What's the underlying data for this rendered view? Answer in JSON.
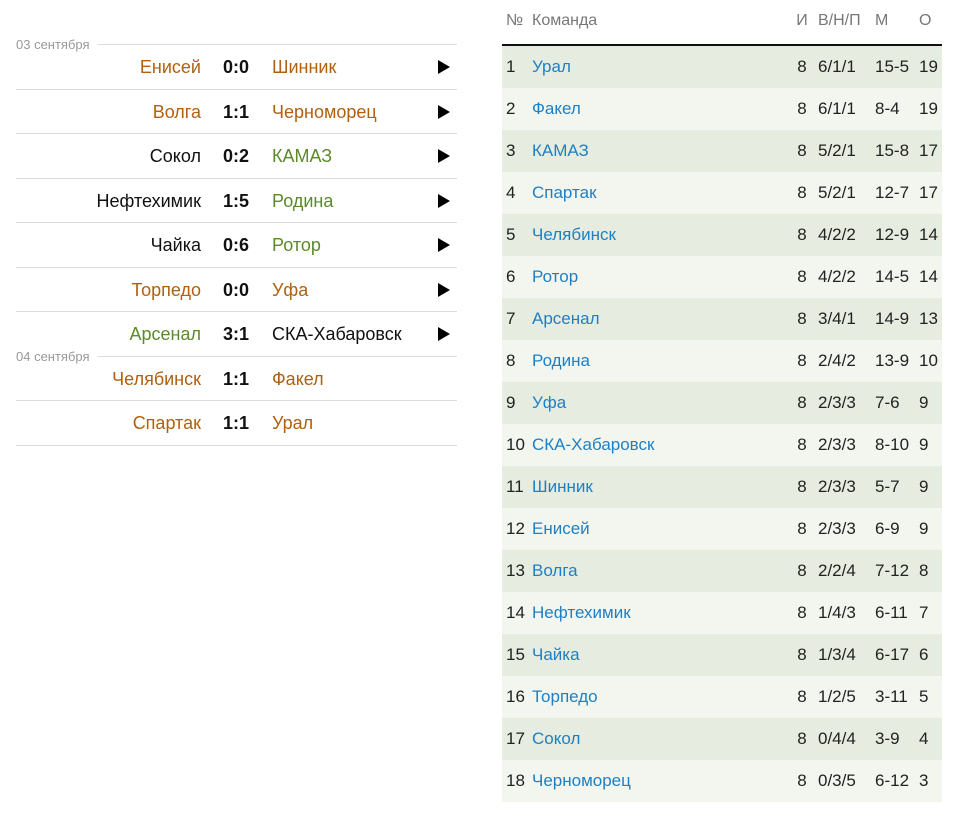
{
  "matches": {
    "groups": [
      {
        "date": "03 сентября",
        "matches": [
          {
            "home": "Енисей",
            "score": "0:0",
            "away": "Шинник",
            "home_color": "#b0600f",
            "away_color": "#b0600f",
            "arrow": true
          },
          {
            "home": "Волга",
            "score": "1:1",
            "away": "Черноморец",
            "home_color": "#b0600f",
            "away_color": "#b0600f",
            "arrow": true
          },
          {
            "home": "Сокол",
            "score": "0:2",
            "away": "КАМАЗ",
            "home_color": "#111111",
            "away_color": "#5a8a2a",
            "arrow": true
          },
          {
            "home": "Нефтехимик",
            "score": "1:5",
            "away": "Родина",
            "home_color": "#111111",
            "away_color": "#5a8a2a",
            "arrow": true
          },
          {
            "home": "Чайка",
            "score": "0:6",
            "away": "Ротор",
            "home_color": "#111111",
            "away_color": "#5a8a2a",
            "arrow": true
          },
          {
            "home": "Торпедо",
            "score": "0:0",
            "away": "Уфа",
            "home_color": "#b0600f",
            "away_color": "#b0600f",
            "arrow": true
          },
          {
            "home": "Арсенал",
            "score": "3:1",
            "away": "СКА-Хабаровск",
            "home_color": "#5a8a2a",
            "away_color": "#111111",
            "arrow": true
          }
        ]
      },
      {
        "date": "04 сентября",
        "matches": [
          {
            "home": "Челябинск",
            "score": "1:1",
            "away": "Факел",
            "home_color": "#b0600f",
            "away_color": "#b0600f",
            "arrow": false
          },
          {
            "home": "Спартак",
            "score": "1:1",
            "away": "Урал",
            "home_color": "#b0600f",
            "away_color": "#b0600f",
            "arrow": false
          }
        ]
      }
    ]
  },
  "table": {
    "header": [
      "№",
      "Команда",
      "И",
      "В/Н/П",
      "М",
      "О"
    ],
    "rows": [
      [
        1,
        "Урал",
        8,
        "6/1/1",
        "15-5",
        19
      ],
      [
        2,
        "Факел",
        8,
        "6/1/1",
        "8-4",
        19
      ],
      [
        3,
        "КАМАЗ",
        8,
        "5/2/1",
        "15-8",
        17
      ],
      [
        4,
        "Спартак",
        8,
        "5/2/1",
        "12-7",
        17
      ],
      [
        5,
        "Челябинск",
        8,
        "4/2/2",
        "12-9",
        14
      ],
      [
        6,
        "Ротор",
        8,
        "4/2/2",
        "14-5",
        14
      ],
      [
        7,
        "Арсенал",
        8,
        "3/4/1",
        "14-9",
        13
      ],
      [
        8,
        "Родина",
        8,
        "2/4/2",
        "13-9",
        10
      ],
      [
        9,
        "Уфа",
        8,
        "2/3/3",
        "7-6",
        9
      ],
      [
        10,
        "СКА-Хабаровск",
        8,
        "2/3/3",
        "8-10",
        9
      ],
      [
        11,
        "Шинник",
        8,
        "2/3/3",
        "5-7",
        9
      ],
      [
        12,
        "Енисей",
        8,
        "2/3/3",
        "6-9",
        9
      ],
      [
        13,
        "Волга",
        8,
        "2/2/4",
        "7-12",
        8
      ],
      [
        14,
        "Нефтехимик",
        8,
        "1/4/3",
        "6-11",
        7
      ],
      [
        15,
        "Чайка",
        8,
        "1/3/4",
        "6-17",
        6
      ],
      [
        16,
        "Торпедо",
        8,
        "1/2/5",
        "3-11",
        5
      ],
      [
        17,
        "Сокол",
        8,
        "0/4/4",
        "3-9",
        4
      ],
      [
        18,
        "Черноморец",
        8,
        "0/3/5",
        "6-12",
        3
      ]
    ]
  }
}
